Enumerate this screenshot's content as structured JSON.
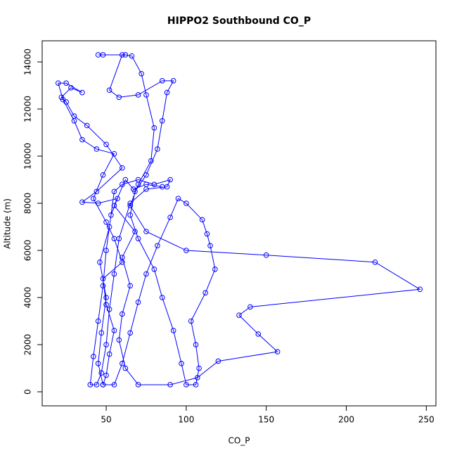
{
  "chart_data": {
    "type": "line",
    "markers": true,
    "title": "HIPPO2 Southbound CO_P",
    "x_label": "CO_P",
    "y_label": "Altitude (m)",
    "color": "#0000ff",
    "x": [
      48,
      45,
      47,
      50,
      46,
      52,
      55,
      60,
      70,
      80,
      90,
      88,
      75,
      65,
      58,
      55,
      52,
      50,
      47,
      44,
      40,
      42,
      45,
      48,
      50,
      53,
      57,
      45,
      35,
      44,
      60,
      50,
      38,
      30,
      25,
      22,
      28,
      35,
      25,
      20,
      23,
      30,
      35,
      44,
      55,
      48,
      42,
      50,
      55,
      60,
      48,
      50,
      55,
      52,
      50,
      48,
      55,
      60,
      65,
      70,
      75,
      82,
      90,
      95,
      100,
      110,
      113,
      115,
      118,
      112,
      103,
      106,
      108,
      106,
      100,
      97,
      92,
      85,
      80,
      70,
      65,
      68,
      75,
      82,
      85,
      88,
      92,
      85,
      70,
      58,
      52,
      60,
      45,
      48,
      62,
      66,
      72,
      75,
      80,
      78,
      70,
      65,
      75,
      100,
      150,
      218,
      246,
      140,
      133,
      145,
      157,
      120,
      107,
      90,
      70,
      62,
      58,
      60,
      65,
      60,
      68,
      55,
      62,
      67,
      75,
      85
    ],
    "values": [
      300,
      1200,
      2500,
      4000,
      5500,
      7000,
      8500,
      8800,
      9000,
      8800,
      9000,
      8700,
      8600,
      8000,
      6500,
      5000,
      3500,
      2000,
      800,
      300,
      300,
      1500,
      3000,
      4500,
      6000,
      7500,
      8200,
      8000,
      8050,
      8500,
      9500,
      10500,
      11300,
      11700,
      12300,
      12500,
      12900,
      12700,
      13100,
      13100,
      12400,
      11500,
      10700,
      10300,
      10100,
      9200,
      8200,
      7200,
      6500,
      5500,
      4800,
      3700,
      2600,
      1600,
      700,
      300,
      300,
      1200,
      2500,
      3800,
      5000,
      6200,
      7400,
      8200,
      8000,
      7300,
      6700,
      6200,
      5200,
      4200,
      3000,
      2000,
      1000,
      300,
      300,
      1200,
      2600,
      4000,
      5200,
      6500,
      7500,
      8500,
      9200,
      10300,
      11500,
      12700,
      13200,
      13200,
      12600,
      12500,
      12800,
      14300,
      14300,
      14300,
      14300,
      14250,
      13500,
      12600,
      11200,
      9800,
      8800,
      7900,
      6800,
      6000,
      5800,
      5500,
      4350,
      3600,
      3250,
      2450,
      1700,
      1300,
      600,
      300,
      300,
      1000,
      2200,
      3300,
      4500,
      5700,
      6800,
      7900,
      9000,
      8600,
      8800,
      8700
    ],
    "xlim": [
      10,
      256
    ],
    "ylim": [
      -597,
      14896
    ],
    "xticks": [
      50,
      100,
      150,
      200,
      250
    ],
    "yticks": [
      0,
      2000,
      4000,
      6000,
      8000,
      10000,
      12000,
      14000
    ]
  }
}
